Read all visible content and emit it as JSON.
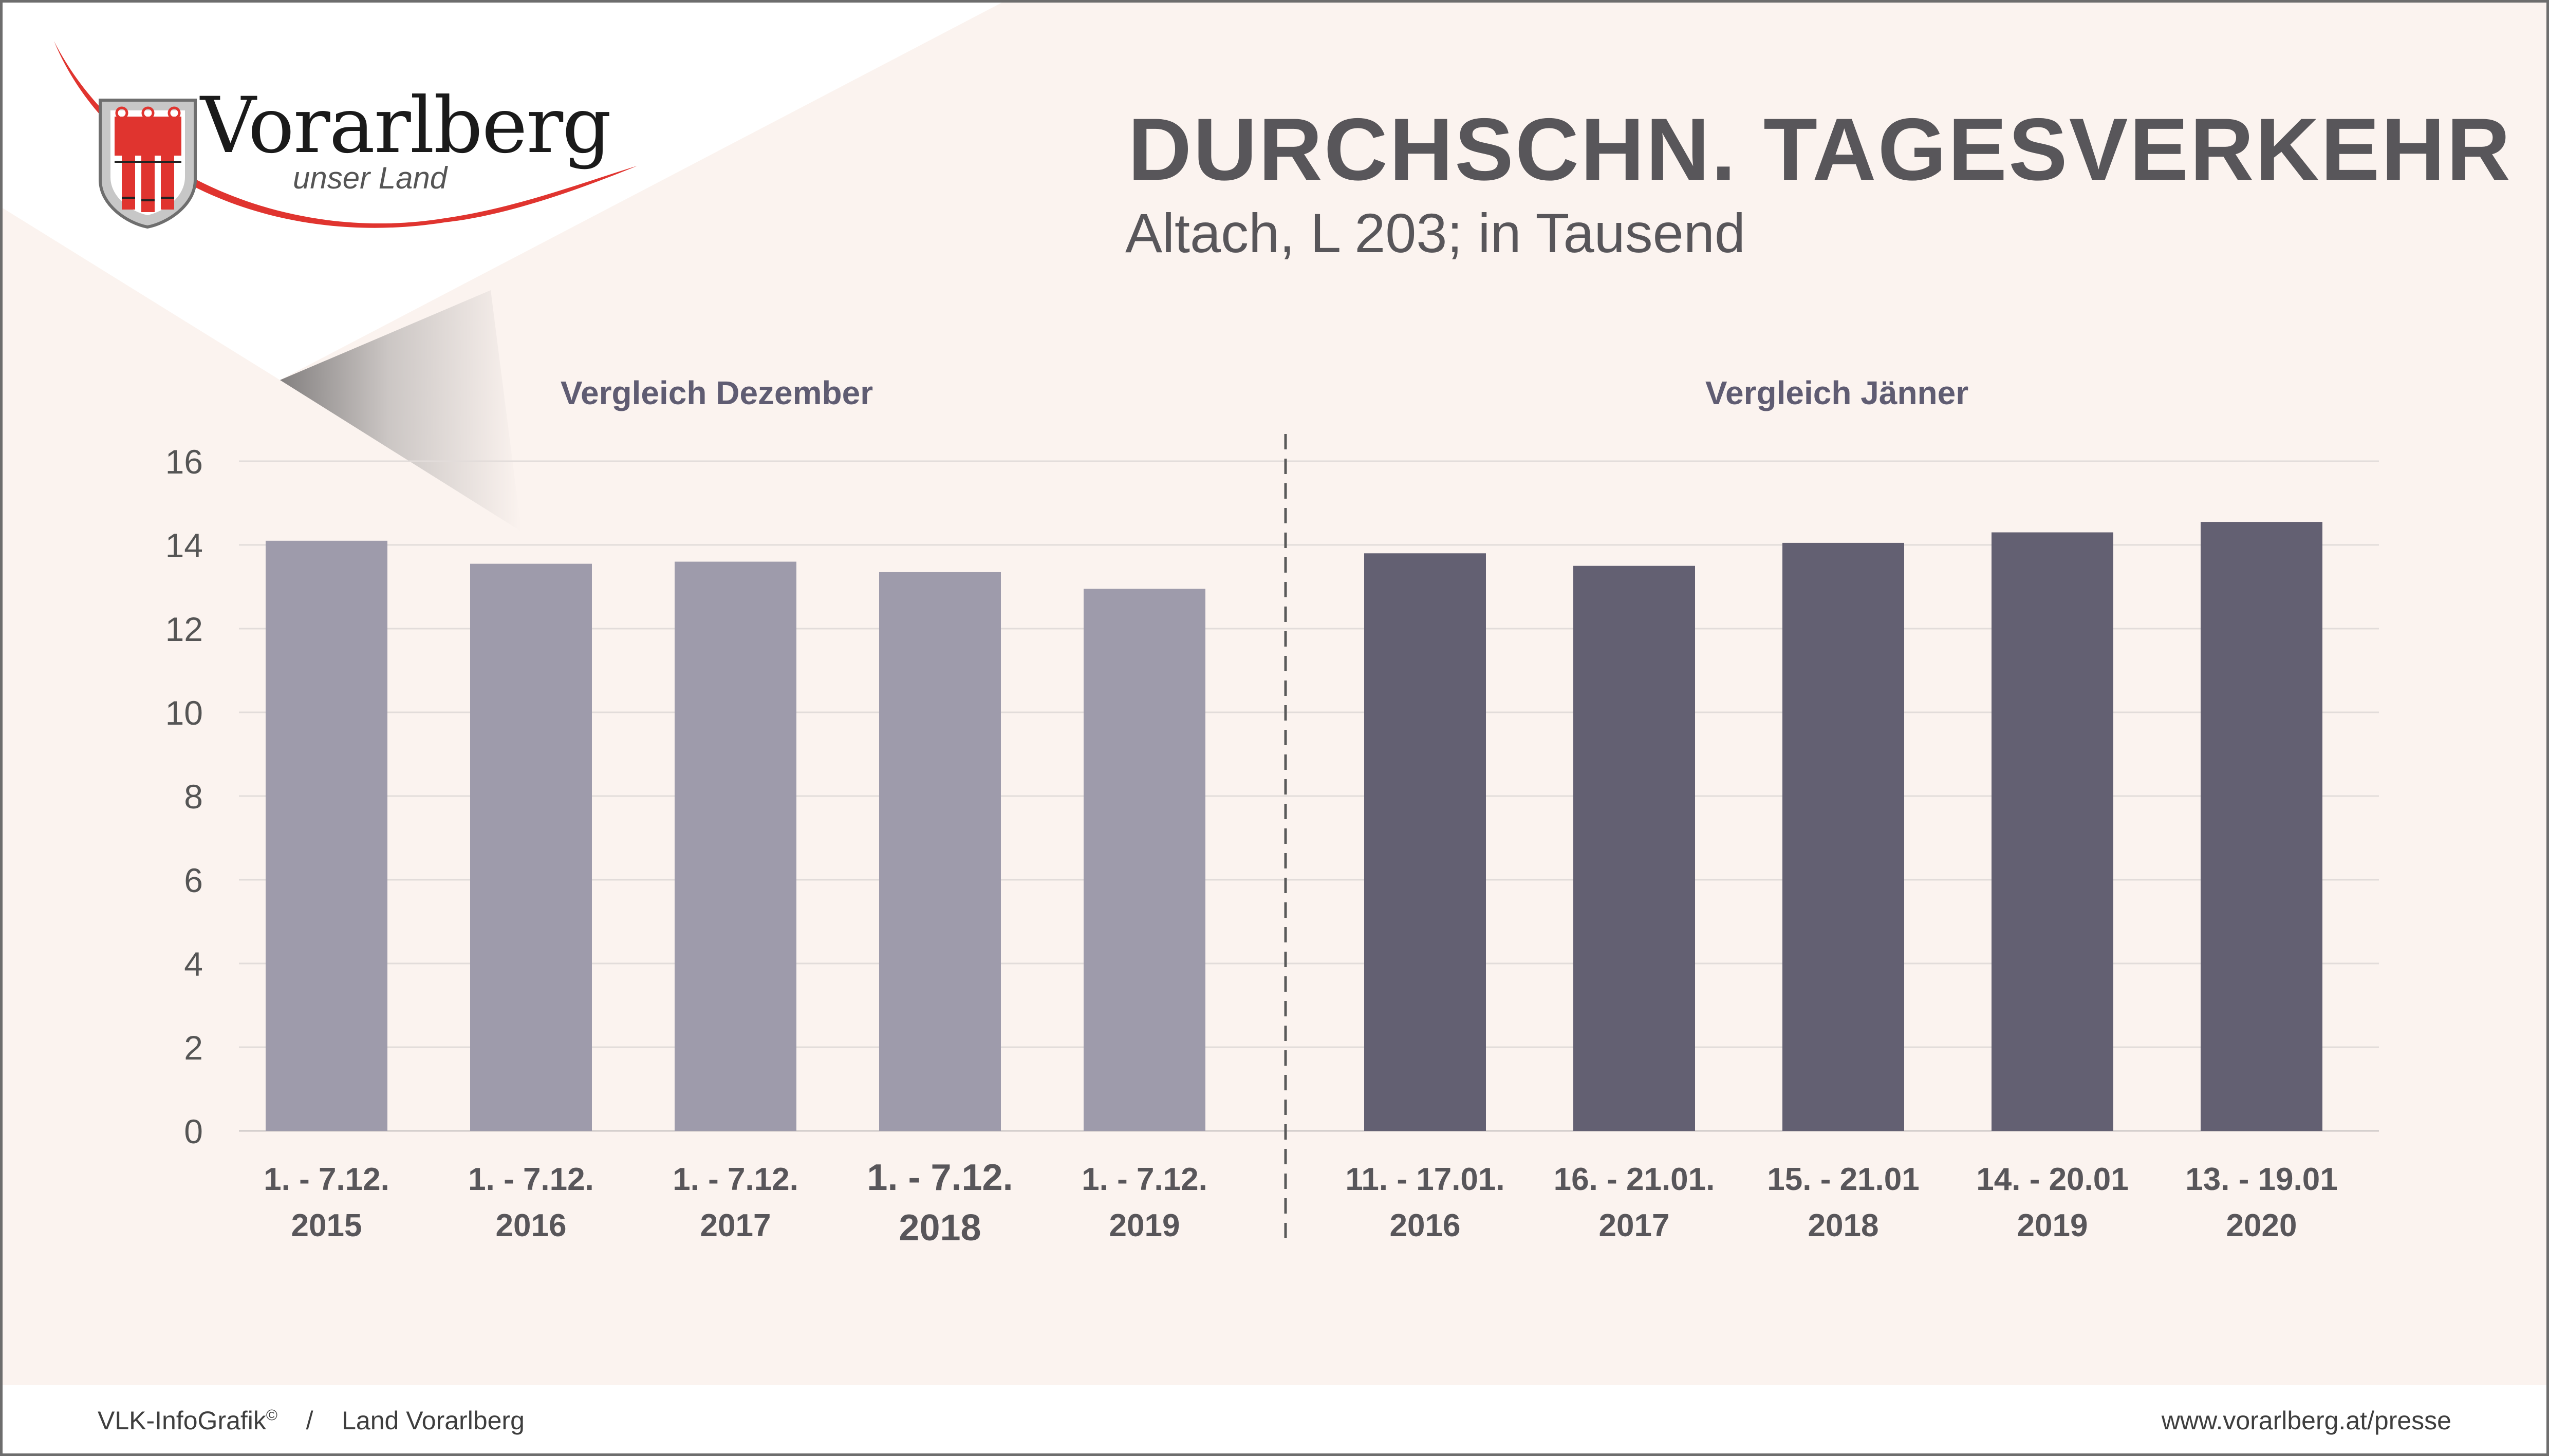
{
  "logo": {
    "name": "Vorarlberg",
    "tagline": "unser Land"
  },
  "header": {
    "title": "DURCHSCHN. TAGESVERKEHR",
    "subtitle": "Altach, L 203; in Tausend"
  },
  "colors": {
    "dezember": "#9e9bab",
    "jaenner": "#636072",
    "accent_red": "#e0342f",
    "background": "#fbf3ef"
  },
  "chart_data": {
    "type": "bar",
    "ylim": [
      0,
      16
    ],
    "yticks": [
      0,
      2,
      4,
      6,
      8,
      10,
      12,
      14,
      16
    ],
    "grid": true,
    "groups": [
      {
        "name": "Vergleich Dezember",
        "color": "#9e9bab",
        "categories": [
          [
            "1. - 7.12.",
            "2015"
          ],
          [
            "1. - 7.12.",
            "2016"
          ],
          [
            "1. - 7.12.",
            "2017"
          ],
          [
            "1. - 7.12.",
            "2018"
          ],
          [
            "1. - 7.12.",
            "2019"
          ]
        ],
        "values": [
          14.1,
          13.55,
          13.6,
          13.35,
          12.95
        ]
      },
      {
        "name": "Vergleich Jänner",
        "color": "#636072",
        "categories": [
          [
            "11. - 17.01.",
            "2016"
          ],
          [
            "16. - 21.01.",
            "2017"
          ],
          [
            "15. - 21.01",
            "2018"
          ],
          [
            "14. - 20.01",
            "2019"
          ],
          [
            "13. - 19.01",
            "2020"
          ]
        ],
        "values": [
          13.8,
          13.5,
          14.05,
          14.3,
          14.55
        ]
      }
    ]
  },
  "footer": {
    "left": "VLK-InfoGrafik",
    "left_mark": "©",
    "separator": "/",
    "left2": "Land Vorarlberg",
    "right": "www.vorarlberg.at/presse"
  }
}
